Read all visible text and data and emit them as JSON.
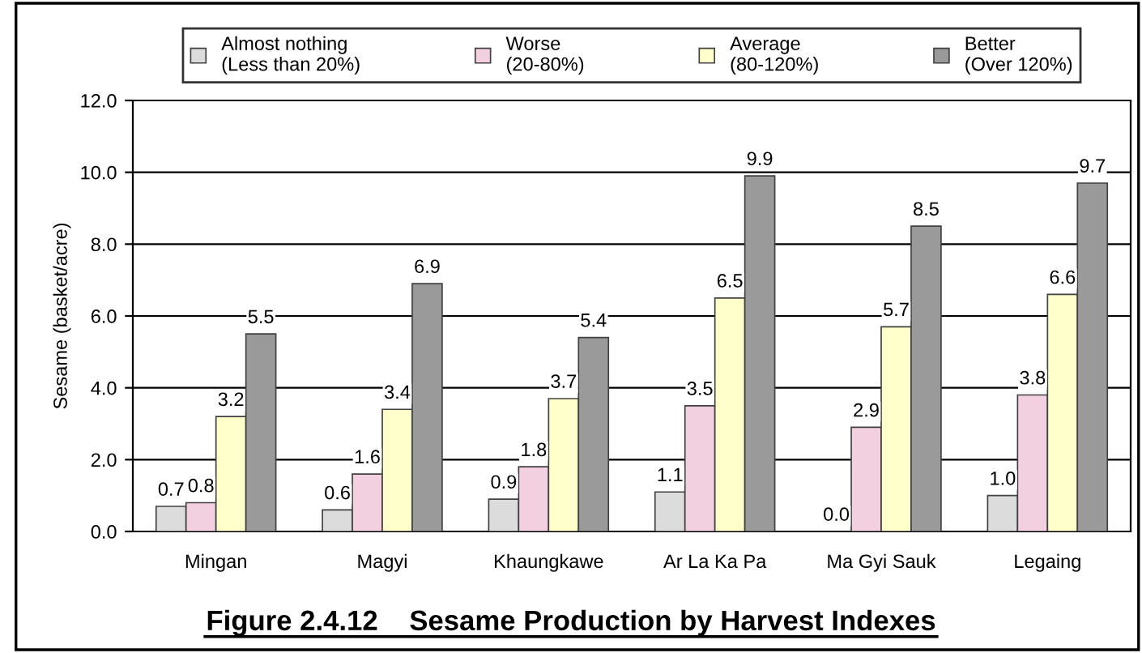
{
  "chart_data": {
    "type": "bar",
    "title": "Figure 2.4.12    Sesame Production by Harvest Indexes",
    "ylabel": "Sesame (basket/acre)",
    "categories": [
      "Mingan",
      "Magyi",
      "Khaungkawe",
      "Ar La Ka Pa",
      "Ma Gyi Sauk",
      "Legaing"
    ],
    "series": [
      {
        "name": "Almost nothing\n(Less than 20%)",
        "color": "#dcdcdc",
        "values": [
          0.7,
          0.6,
          0.9,
          1.1,
          0.0,
          1.0
        ],
        "value_labels": [
          "0.7",
          "0.6",
          "0.9",
          "1.1",
          "0.0",
          "1.0"
        ]
      },
      {
        "name": "Worse\n(20-80%)",
        "color": "#f2d0e0",
        "values": [
          0.8,
          1.6,
          1.8,
          3.5,
          2.9,
          3.8
        ],
        "value_labels": [
          "0.8",
          "1.6",
          "1.8",
          "3.5",
          "2.9",
          "3.8"
        ]
      },
      {
        "name": "Average\n(80-120%)",
        "color": "#ffffcc",
        "values": [
          3.2,
          3.4,
          3.7,
          6.5,
          5.7,
          6.6
        ],
        "value_labels": [
          "3.2",
          "3.4",
          "3.7",
          "6.5",
          "5.7",
          "6.6"
        ]
      },
      {
        "name": "Better\n(Over 120%)",
        "color": "#9a9a9a",
        "values": [
          5.5,
          6.9,
          5.4,
          9.9,
          8.5,
          9.7
        ],
        "value_labels": [
          "5.5",
          "6.9",
          "5.4",
          "9.9",
          "8.5",
          "9.7"
        ]
      }
    ],
    "ylim": [
      0,
      12
    ],
    "yticks": [
      {
        "value": 0,
        "label": "0.0"
      },
      {
        "value": 2,
        "label": "2.0"
      },
      {
        "value": 4,
        "label": "4.0"
      },
      {
        "value": 6,
        "label": "6.0"
      },
      {
        "value": 8,
        "label": "8.0"
      },
      {
        "value": 10,
        "label": "10.0"
      },
      {
        "value": 12,
        "label": "12.0"
      }
    ],
    "grid": "y",
    "legend": "top"
  }
}
